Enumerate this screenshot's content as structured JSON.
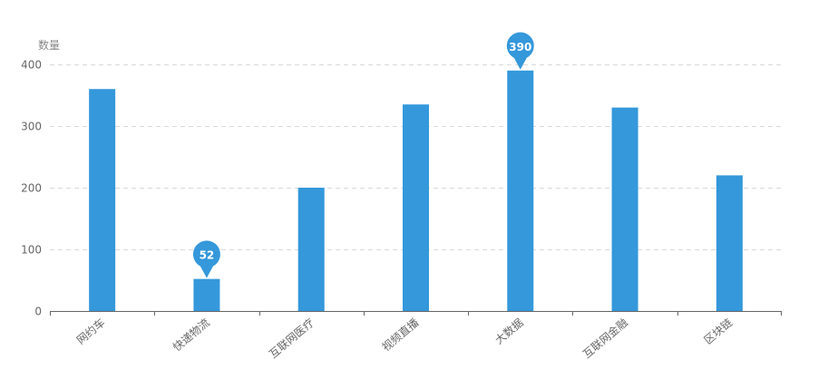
{
  "chart_data": {
    "type": "bar",
    "ylabel": "数量",
    "categories": [
      "网约车",
      "快递物流",
      "互联网医疗",
      "视频直播",
      "大数据",
      "互联网金融",
      "区块链"
    ],
    "series": [
      {
        "values": [
          360,
          52,
          200,
          335,
          390,
          330,
          220
        ]
      }
    ],
    "ylim": [
      0,
      400
    ],
    "yticks": [
      0,
      100,
      200,
      300,
      400
    ],
    "grid": true,
    "bar_color": "#3498db",
    "markers": [
      {
        "type": "max",
        "category": "大数据",
        "value": 390,
        "label": "390"
      },
      {
        "type": "min",
        "category": "快递物流",
        "value": 52,
        "label": "52"
      }
    ]
  }
}
